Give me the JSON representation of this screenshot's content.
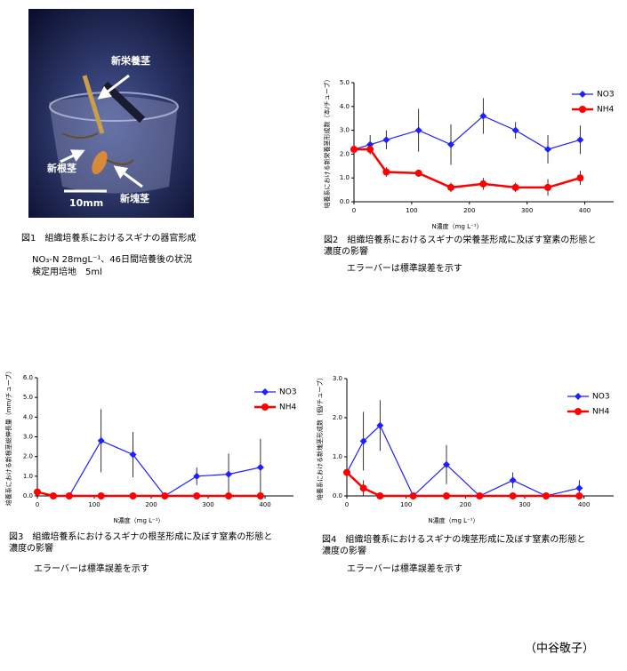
{
  "figure1": {
    "photo_labels": {
      "shoot": "新栄養茎",
      "rhizome": "新根茎",
      "tuber": "新塊茎",
      "scale": "10mm"
    },
    "caption": "図1　組織培養系におけるスギナの器官形成",
    "note_lines": [
      "NO₃-N 28mgL⁻¹、46日間培養後の状況",
      "検定用培地　5ml"
    ]
  },
  "chart_data": [
    {
      "type": "line",
      "y_label": "培養系における新栄養茎形成数（本/チューブ）",
      "x_label": "N濃度（mg L⁻¹）",
      "caption": [
        "図2　組織培養系におけるスギナの栄養茎形成に及ぼす窒素の形態と",
        "濃度の影響"
      ],
      "note": "エラーバーは標準誤差を示す",
      "x": [
        0,
        28,
        56,
        112,
        168,
        224,
        280,
        336,
        392
      ],
      "xlim": [
        0,
        450
      ],
      "xticks": [
        0,
        100,
        200,
        300,
        400
      ],
      "ylim": [
        0,
        5
      ],
      "yticks": [
        {
          "value": 0,
          "label": "0.0"
        },
        {
          "value": 1,
          "label": "1.0"
        },
        {
          "value": 2,
          "label": "2.0"
        },
        {
          "value": 3,
          "label": "3.0"
        },
        {
          "value": 4,
          "label": "4.0"
        },
        {
          "value": 5,
          "label": "5.0"
        }
      ],
      "series": [
        {
          "name": "NO3",
          "color": "#1f1fff",
          "values": [
            2.2,
            2.4,
            2.6,
            3.0,
            2.4,
            3.6,
            3.0,
            2.2,
            2.6
          ],
          "errors": [
            0,
            0.4,
            0.4,
            0.9,
            0.85,
            0.75,
            0.35,
            0.6,
            0.6
          ]
        },
        {
          "name": "NH4",
          "color": "#ff0000",
          "values": [
            2.2,
            2.2,
            1.25,
            1.2,
            0.6,
            0.75,
            0.6,
            0.6,
            1.0
          ],
          "errors": [
            0,
            0.2,
            0.2,
            0.15,
            0.2,
            0.25,
            0.2,
            0.35,
            0.3
          ]
        }
      ]
    },
    {
      "type": "line",
      "y_label": "培養系における新根茎総伸長量（mm/チューブ）",
      "x_label": "N濃度（mg L⁻¹）",
      "caption": [
        "図3　組織培養系におけるスギナの根茎形成に及ぼす窒素の形態と",
        "濃度の影響"
      ],
      "note": "エラーバーは標準誤差を示す",
      "x": [
        0,
        28,
        56,
        112,
        168,
        224,
        280,
        336,
        392
      ],
      "xlim": [
        0,
        450
      ],
      "xticks": [
        0,
        100,
        200,
        300,
        400
      ],
      "ylim": [
        0,
        6
      ],
      "yticks": [
        {
          "value": 0,
          "label": "0.0"
        },
        {
          "value": 1,
          "label": "1.0"
        },
        {
          "value": 2,
          "label": "2.0"
        },
        {
          "value": 3,
          "label": "3.0"
        },
        {
          "value": 4,
          "label": "4.0"
        },
        {
          "value": 5,
          "label": "5.0"
        },
        {
          "value": 6,
          "label": "6.0"
        }
      ],
      "series": [
        {
          "name": "NO3",
          "color": "#1f1fff",
          "values": [
            0.2,
            0,
            0,
            2.8,
            2.1,
            0,
            1.0,
            1.1,
            1.45
          ],
          "errors": [
            0,
            0,
            0,
            1.6,
            1.15,
            0,
            0.45,
            1.05,
            1.45
          ]
        },
        {
          "name": "NH4",
          "color": "#ff0000",
          "values": [
            0.2,
            0,
            0,
            0,
            0,
            0,
            0,
            0,
            0
          ],
          "errors": [
            0,
            0,
            0,
            0,
            0,
            0,
            0,
            0,
            0
          ]
        }
      ]
    },
    {
      "type": "line",
      "y_label": "培養系における新塊茎形成数（個/チューブ）",
      "x_label": "N濃度（mg L⁻¹）",
      "caption": [
        "図4　組織培養系におけるスギナの塊茎形成に及ぼす窒素の形態と",
        "濃度の影響"
      ],
      "note": "エラーバーは標準誤差を示す",
      "x": [
        0,
        28,
        56,
        112,
        168,
        224,
        280,
        336,
        392
      ],
      "xlim": [
        0,
        450
      ],
      "xticks": [
        0,
        100,
        200,
        300,
        400
      ],
      "ylim": [
        0,
        3
      ],
      "yticks": [
        {
          "value": 0,
          "label": "0.0"
        },
        {
          "value": 1,
          "label": "1.0"
        },
        {
          "value": 2,
          "label": "2.0"
        },
        {
          "value": 3,
          "label": "3.0"
        }
      ],
      "series": [
        {
          "name": "NO3",
          "color": "#1f1fff",
          "values": [
            0.6,
            1.4,
            1.8,
            0,
            0.8,
            0,
            0.4,
            0,
            0.2
          ],
          "errors": [
            0,
            0.75,
            0.65,
            0,
            0.5,
            0,
            0.2,
            0,
            0.2
          ]
        },
        {
          "name": "NH4",
          "color": "#ff0000",
          "values": [
            0.6,
            0.2,
            0,
            0,
            0,
            0,
            0,
            0,
            0
          ],
          "errors": [
            0,
            0.2,
            0,
            0,
            0,
            0,
            0,
            0,
            0
          ]
        }
      ]
    }
  ],
  "author": "（中谷敬子）"
}
